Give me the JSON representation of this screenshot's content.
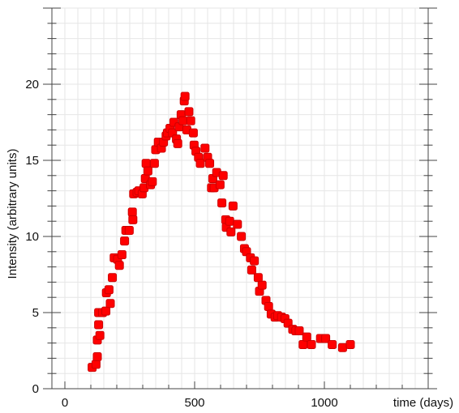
{
  "chart_data": {
    "type": "scatter",
    "title": "",
    "xlabel": "time (days)",
    "ylabel": "Intensity (arbitrary units)",
    "xlim": [
      -50,
      1400
    ],
    "ylim": [
      0,
      25
    ],
    "xticks": [
      0,
      500,
      1000
    ],
    "xtick_labels": [
      "0",
      "500",
      "1000"
    ],
    "yticks": [
      0,
      5,
      10,
      15,
      20
    ],
    "ytick_labels": [
      "0",
      "5",
      "10",
      "15",
      "20"
    ],
    "grid": true,
    "marker_color": "#ff0000",
    "marker_edge_color": "#cc0000",
    "grid_color": "#e6e6e6",
    "series": [
      {
        "points": [
          [
            105,
            1.4
          ],
          [
            120,
            1.6
          ],
          [
            125,
            2.1
          ],
          [
            125,
            3.2
          ],
          [
            130,
            4.2
          ],
          [
            130,
            5.0
          ],
          [
            135,
            3.5
          ],
          [
            145,
            5.0
          ],
          [
            158,
            5.1
          ],
          [
            160,
            6.3
          ],
          [
            170,
            6.5
          ],
          [
            175,
            5.6
          ],
          [
            183,
            7.3
          ],
          [
            190,
            8.6
          ],
          [
            203,
            8.5
          ],
          [
            210,
            8.1
          ],
          [
            220,
            8.8
          ],
          [
            230,
            9.7
          ],
          [
            235,
            10.4
          ],
          [
            248,
            10.4
          ],
          [
            260,
            11.6
          ],
          [
            262,
            11.1
          ],
          [
            265,
            12.8
          ],
          [
            278,
            12.9
          ],
          [
            285,
            13.0
          ],
          [
            298,
            12.8
          ],
          [
            305,
            13.2
          ],
          [
            310,
            13.8
          ],
          [
            313,
            14.8
          ],
          [
            320,
            14.3
          ],
          [
            330,
            13.4
          ],
          [
            337,
            13.6
          ],
          [
            345,
            14.8
          ],
          [
            350,
            15.7
          ],
          [
            360,
            16.2
          ],
          [
            372,
            15.8
          ],
          [
            380,
            16.2
          ],
          [
            390,
            16.6
          ],
          [
            395,
            16.8
          ],
          [
            405,
            17.1
          ],
          [
            415,
            16.8
          ],
          [
            420,
            17.5
          ],
          [
            430,
            16.4
          ],
          [
            435,
            16.1
          ],
          [
            440,
            17.2
          ],
          [
            448,
            18.0
          ],
          [
            455,
            17.6
          ],
          [
            460,
            18.9
          ],
          [
            463,
            19.2
          ],
          [
            470,
            17.0
          ],
          [
            478,
            18.2
          ],
          [
            485,
            17.6
          ],
          [
            495,
            16.8
          ],
          [
            498,
            16.0
          ],
          [
            505,
            15.6
          ],
          [
            515,
            15.2
          ],
          [
            522,
            14.8
          ],
          [
            540,
            15.8
          ],
          [
            550,
            15.2
          ],
          [
            558,
            14.8
          ],
          [
            565,
            13.2
          ],
          [
            570,
            13.8
          ],
          [
            575,
            13.2
          ],
          [
            585,
            14.2
          ],
          [
            598,
            13.4
          ],
          [
            605,
            12.2
          ],
          [
            610,
            14.0
          ],
          [
            620,
            11.1
          ],
          [
            622,
            10.6
          ],
          [
            635,
            11.0
          ],
          [
            640,
            10.3
          ],
          [
            648,
            12.0
          ],
          [
            665,
            10.8
          ],
          [
            680,
            10.0
          ],
          [
            692,
            9.2
          ],
          [
            700,
            9.0
          ],
          [
            715,
            8.6
          ],
          [
            720,
            7.8
          ],
          [
            730,
            8.4
          ],
          [
            745,
            7.3
          ],
          [
            750,
            6.4
          ],
          [
            760,
            6.8
          ],
          [
            775,
            5.8
          ],
          [
            785,
            5.4
          ],
          [
            795,
            4.9
          ],
          [
            810,
            4.7
          ],
          [
            820,
            4.8
          ],
          [
            835,
            4.7
          ],
          [
            848,
            4.6
          ],
          [
            860,
            4.3
          ],
          [
            878,
            3.9
          ],
          [
            890,
            3.8
          ],
          [
            903,
            3.8
          ],
          [
            918,
            2.9
          ],
          [
            932,
            3.4
          ],
          [
            950,
            2.9
          ],
          [
            985,
            3.3
          ],
          [
            1005,
            3.3
          ],
          [
            1030,
            2.9
          ],
          [
            1070,
            2.7
          ],
          [
            1100,
            2.9
          ]
        ]
      }
    ]
  }
}
